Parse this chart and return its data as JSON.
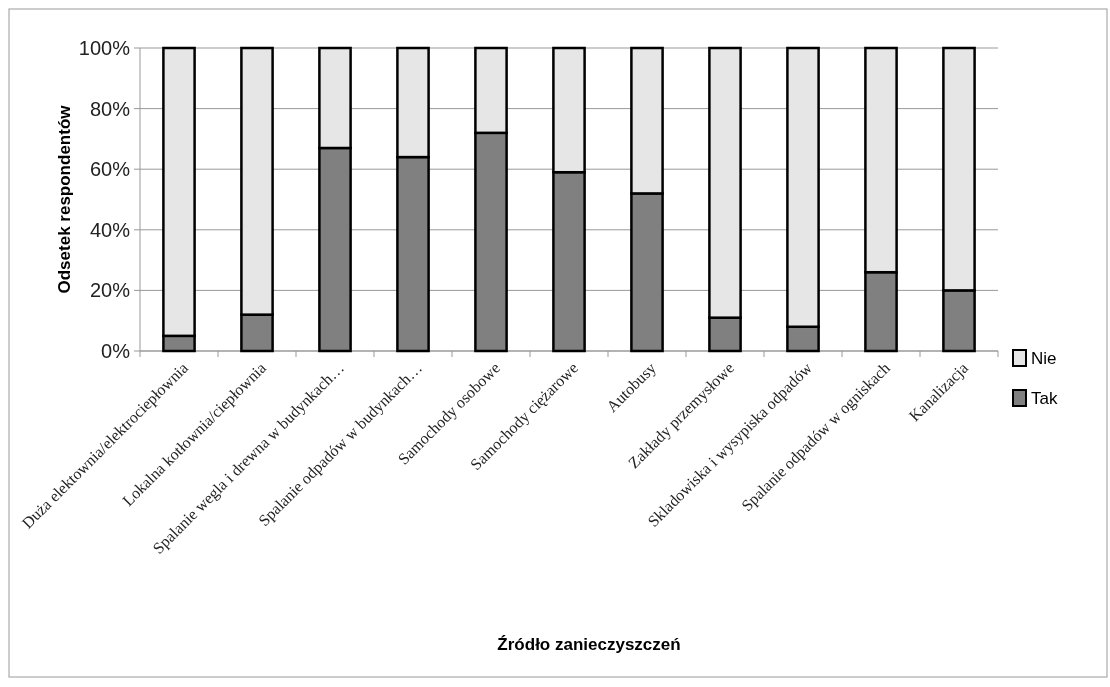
{
  "chart_data": {
    "type": "bar",
    "stacked": true,
    "xlabel": "Źródło zanieczyszczeń",
    "ylabel": "Odsetek respondentów",
    "categories": [
      "Duża elektownia/elektrociepłownia",
      "Lokalna kotłownia/ciepłownia",
      "Spalanie wegla i drewna w budynkach…",
      "Spalanie odpadów w budynkach…",
      "Samochody osobowe",
      "Samochody ciężarowe",
      "Autobusy",
      "Zakłady przemysłowe",
      "Skladowiska i wysypiska odpadów",
      "Spalanie odpadów w ogniskach",
      "Kanalizacja"
    ],
    "series": [
      {
        "name": "Tak",
        "color": "#808080",
        "values": [
          5,
          12,
          67,
          64,
          72,
          59,
          52,
          11,
          8,
          26,
          20
        ]
      },
      {
        "name": "Nie",
        "color": "#e6e6e6",
        "values": [
          95,
          88,
          33,
          36,
          28,
          41,
          48,
          89,
          92,
          74,
          80
        ]
      }
    ],
    "ylim": [
      0,
      100
    ],
    "yticks": [
      {
        "value": 0,
        "label": "0%"
      },
      {
        "value": 20,
        "label": "20%"
      },
      {
        "value": 40,
        "label": "40%"
      },
      {
        "value": 60,
        "label": "60%"
      },
      {
        "value": 80,
        "label": "80%"
      },
      {
        "value": 100,
        "label": "100%"
      }
    ],
    "grid": "y",
    "legend": "right"
  }
}
